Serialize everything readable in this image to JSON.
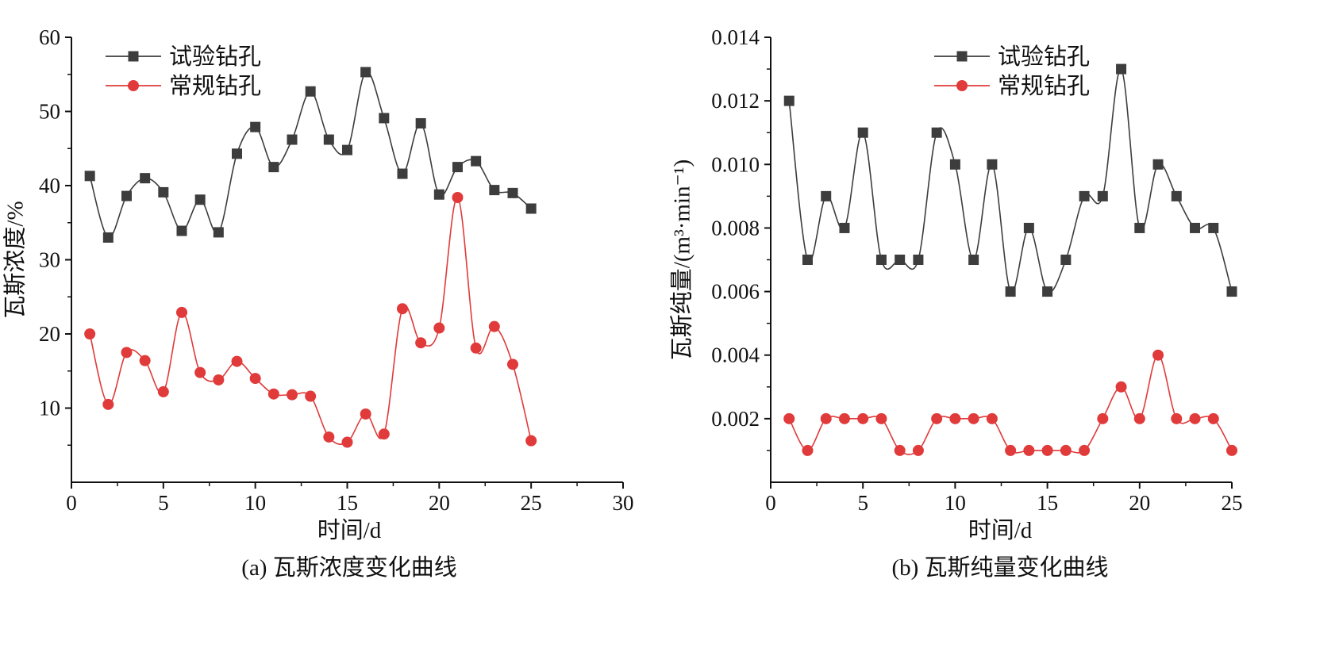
{
  "colors": {
    "test": "#3d3d3d",
    "regular": "#e03a3a",
    "axis": "#111111"
  },
  "chart_data": [
    {
      "type": "line",
      "caption": "(a) 瓦斯浓度变化曲线",
      "xlabel": "时间/d",
      "ylabel": "瓦斯浓度/%",
      "xlim": [
        0,
        30
      ],
      "ylim": [
        0,
        60
      ],
      "xticks": [
        "0",
        "5",
        "10",
        "15",
        "20",
        "25",
        "30"
      ],
      "yticks": [
        "10",
        "20",
        "30",
        "40",
        "50",
        "60"
      ],
      "legend_position": "top-left",
      "x": [
        1,
        2,
        3,
        4,
        5,
        6,
        7,
        8,
        9,
        10,
        11,
        12,
        13,
        14,
        15,
        16,
        17,
        18,
        19,
        20,
        21,
        22,
        23,
        24,
        25
      ],
      "series": [
        {
          "name": "试验钻孔",
          "marker": "square",
          "color": "#3d3d3d",
          "values": [
            41.3,
            33.0,
            38.6,
            41.0,
            39.1,
            33.9,
            38.1,
            33.7,
            44.3,
            47.9,
            42.5,
            46.2,
            52.7,
            46.2,
            44.8,
            55.3,
            49.1,
            41.6,
            48.4,
            38.8,
            42.5,
            43.3,
            39.4,
            39.0,
            36.9
          ]
        },
        {
          "name": "常规钻孔",
          "marker": "circle",
          "color": "#e03a3a",
          "values": [
            20.0,
            10.5,
            17.5,
            16.4,
            12.2,
            22.9,
            14.8,
            13.8,
            16.3,
            14.0,
            11.9,
            11.8,
            11.6,
            6.1,
            5.4,
            9.2,
            6.5,
            23.4,
            18.8,
            20.8,
            38.4,
            18.1,
            21.0,
            15.9,
            5.6
          ]
        }
      ]
    },
    {
      "type": "line",
      "caption": "(b) 瓦斯纯量变化曲线",
      "xlabel": "时间/d",
      "ylabel": "瓦斯纯量/(m³·min⁻¹)",
      "xlim": [
        0,
        25
      ],
      "ylim": [
        0,
        0.014
      ],
      "xticks": [
        "0",
        "5",
        "10",
        "15",
        "20",
        "25"
      ],
      "yticks": [
        "0.002",
        "0.004",
        "0.006",
        "0.008",
        "0.010",
        "0.012",
        "0.014"
      ],
      "legend_position": "top-center",
      "x": [
        1,
        2,
        3,
        4,
        5,
        6,
        7,
        8,
        9,
        10,
        11,
        12,
        13,
        14,
        15,
        16,
        17,
        18,
        19,
        20,
        21,
        22,
        23,
        24,
        25
      ],
      "series": [
        {
          "name": "试验钻孔",
          "marker": "square",
          "color": "#3d3d3d",
          "values": [
            0.012,
            0.007,
            0.009,
            0.008,
            0.011,
            0.007,
            0.007,
            0.007,
            0.011,
            0.01,
            0.007,
            0.01,
            0.006,
            0.008,
            0.006,
            0.007,
            0.009,
            0.009,
            0.013,
            0.008,
            0.01,
            0.009,
            0.008,
            0.008,
            0.006
          ]
        },
        {
          "name": "常规钻孔",
          "marker": "circle",
          "color": "#e03a3a",
          "values": [
            0.002,
            0.001,
            0.002,
            0.002,
            0.002,
            0.002,
            0.001,
            0.001,
            0.002,
            0.002,
            0.002,
            0.002,
            0.001,
            0.001,
            0.001,
            0.001,
            0.001,
            0.002,
            0.003,
            0.002,
            0.004,
            0.002,
            0.002,
            0.002,
            0.001
          ]
        }
      ]
    }
  ]
}
